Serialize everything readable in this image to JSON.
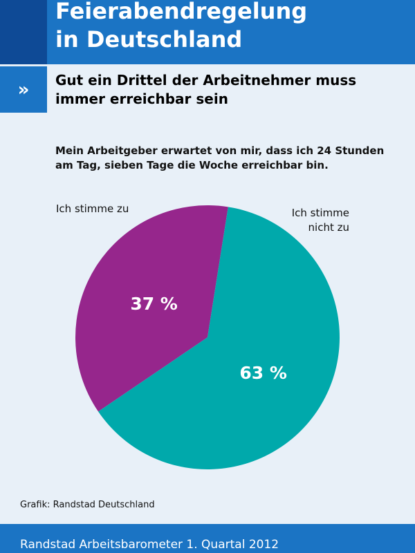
{
  "header": {
    "title": "Feierabendregelung\nin Deutschland",
    "marker": "»",
    "subtitle": "Gut ein Drittel der Arbeitnehmer muss\nimmer erreichbar sein"
  },
  "question": "Mein Arbeitgeber erwartet von mir, dass ich 24 Stunden\nam Tag, sieben Tage die Woche erreichbar bin.",
  "chart_data": {
    "type": "pie",
    "title": "Mein Arbeitgeber erwartet von mir, dass ich 24 Stunden am Tag, sieben Tage die Woche erreichbar bin.",
    "slices": [
      {
        "label": "Ich stimme zu",
        "value": 37,
        "value_label": "37 %",
        "color": "#96268c"
      },
      {
        "label": "Ich stimme nicht zu",
        "value": 63,
        "value_label": "63 %",
        "color": "#00a9ab"
      }
    ]
  },
  "source": "Grafik: Randstad Deutschland",
  "footer": "Randstad Arbeitsbarometer 1. Quartal 2012"
}
